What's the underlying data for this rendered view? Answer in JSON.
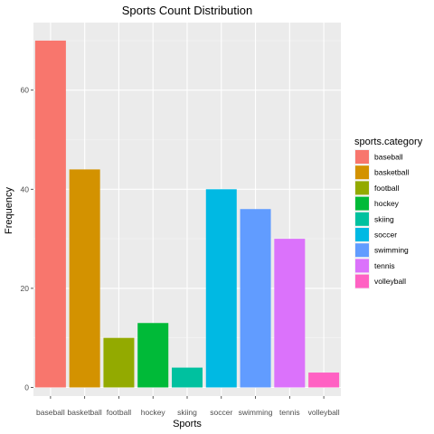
{
  "chart_data": {
    "type": "bar",
    "title": "Sports Count Distribution",
    "xlabel": "Sports",
    "ylabel": "Frequency",
    "categories": [
      "baseball",
      "basketball",
      "football",
      "hockey",
      "skiing",
      "soccer",
      "swimming",
      "tennis",
      "volleyball"
    ],
    "values": [
      70,
      44,
      10,
      13,
      4,
      40,
      36,
      30,
      3
    ],
    "colors": [
      "#F8766D",
      "#D39200",
      "#93AA00",
      "#00BA38",
      "#00C19F",
      "#00B9E3",
      "#619CFF",
      "#DB72FB",
      "#FF61C3"
    ],
    "ylim": [
      0,
      73.5
    ],
    "yticks": [
      0,
      20,
      40,
      60
    ],
    "grid": true,
    "panel_background": "#EBEBEB",
    "legend": {
      "title": "sports.category",
      "position": "right",
      "entries": [
        "baseball",
        "basketball",
        "football",
        "hockey",
        "skiing",
        "soccer",
        "swimming",
        "tennis",
        "volleyball"
      ]
    }
  }
}
